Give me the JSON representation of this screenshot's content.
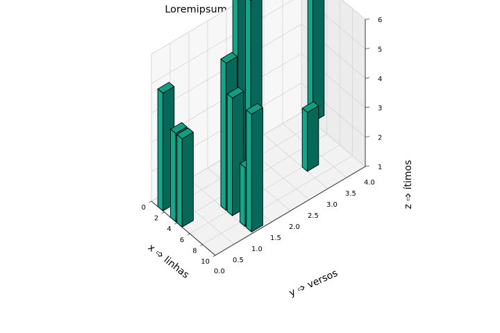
{
  "chart_data": {
    "type": "bar3d",
    "title": "Loremipsum ➩ 10 ➩ 38 ( 38 / 79 )",
    "xlabel": "x ➩ linhas",
    "ylabel": "y ➩ versos",
    "zlabel": "z ➩ ítimos",
    "x_ticks": [
      "0",
      "2",
      "4",
      "6",
      "8",
      "10"
    ],
    "y_ticks": [
      "0.0",
      "0.5",
      "1.0",
      "1.5",
      "2.0",
      "2.5",
      "3.0",
      "3.5",
      "4.0"
    ],
    "z_ticks": [
      "1",
      "2",
      "3",
      "4",
      "5",
      "6"
    ],
    "xlim": [
      0,
      10
    ],
    "ylim": [
      0,
      4
    ],
    "zlim": [
      1,
      6
    ],
    "grid": true,
    "bar_color": "#0fa88a",
    "bars": [
      {
        "x": 1,
        "y": 0,
        "height": 5
      },
      {
        "x": 1,
        "y": 2,
        "height": 7
      },
      {
        "x": 1,
        "y": 4,
        "height": 6
      },
      {
        "x": 3,
        "y": 0,
        "height": 4
      },
      {
        "x": 4,
        "y": 0,
        "height": 4
      },
      {
        "x": 3,
        "y": 2,
        "height": 7
      },
      {
        "x": 5,
        "y": 1,
        "height": 6
      },
      {
        "x": 6,
        "y": 1,
        "height": 5
      },
      {
        "x": 8,
        "y": 1,
        "height": 3
      },
      {
        "x": 6,
        "y": 3,
        "height": 3
      },
      {
        "x": 9,
        "y": 1,
        "height": 5
      }
    ]
  }
}
